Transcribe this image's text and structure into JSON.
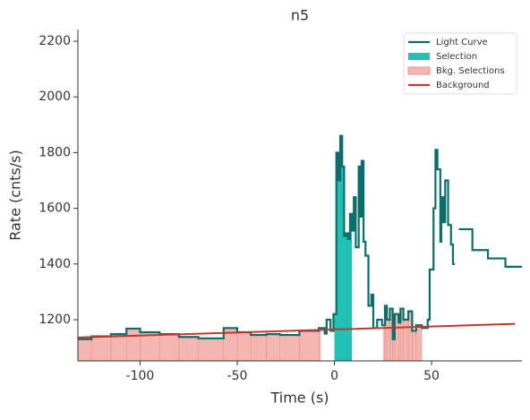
{
  "chart_data": {
    "type": "step",
    "title": "n5",
    "xlabel": "Time (s)",
    "ylabel": "Rate (cnts/s)",
    "xlim": [
      -132,
      96.5
    ],
    "ylim": [
      1052,
      2242
    ],
    "xticks": [
      -100,
      -50,
      0,
      50
    ],
    "yticks": [
      1200,
      1400,
      1600,
      1800,
      2000,
      2200
    ],
    "legend": "upper right",
    "series": [
      {
        "name": "Light Curve",
        "color": "#0b6e6a",
        "x": [
          -132,
          -125,
          -115,
          -107,
          -100,
          -90,
          -80,
          -70,
          -57,
          -50,
          -43,
          -35,
          -28,
          -18,
          -8,
          -5,
          -4,
          -2,
          -0.5,
          1,
          2,
          3,
          4,
          5,
          6,
          7,
          8,
          9,
          10,
          11,
          12.5,
          13,
          14,
          15,
          16,
          17.5,
          19,
          20,
          22,
          24.5,
          26,
          27,
          28.5,
          30,
          31,
          33,
          34,
          35.5,
          38,
          40,
          42,
          45,
          48,
          49,
          51,
          52,
          53,
          54.5,
          55,
          56,
          57,
          58.5,
          60,
          61,
          62,
          64,
          71,
          79,
          88
        ],
        "values": [
          1130,
          1140,
          1148,
          1168,
          1155,
          1148,
          1138,
          1133,
          1170,
          1155,
          1145,
          1148,
          1145,
          1160,
          1170,
          1150,
          1200,
          1160,
          1220,
          1800,
          1700,
          1860,
          1750,
          1500,
          1510,
          1490,
          1580,
          1520,
          1640,
          1460,
          1750,
          1570,
          1770,
          1480,
          1430,
          1250,
          1290,
          1170,
          1200,
          1180,
          1250,
          1200,
          1240,
          1130,
          1220,
          1190,
          1240,
          1200,
          1230,
          1160,
          1180,
          1170,
          1200,
          1380,
          1600,
          1810,
          1740,
          1480,
          1640,
          1550,
          1700,
          1540,
          1470,
          1400,
          null,
          1525,
          1450,
          1420,
          1390
        ]
      },
      {
        "name": "Selection",
        "color": "#20c0b4",
        "ranges": [
          [
            0,
            9
          ]
        ]
      },
      {
        "name": "Bkg. Selections",
        "color": "#f4b6b0",
        "ranges": [
          [
            -132,
            -7
          ],
          [
            25,
            45
          ]
        ]
      },
      {
        "name": "Background",
        "color": "#c0392b",
        "x": [
          -132,
          93
        ],
        "values": [
          1136,
          1185
        ]
      }
    ]
  }
}
